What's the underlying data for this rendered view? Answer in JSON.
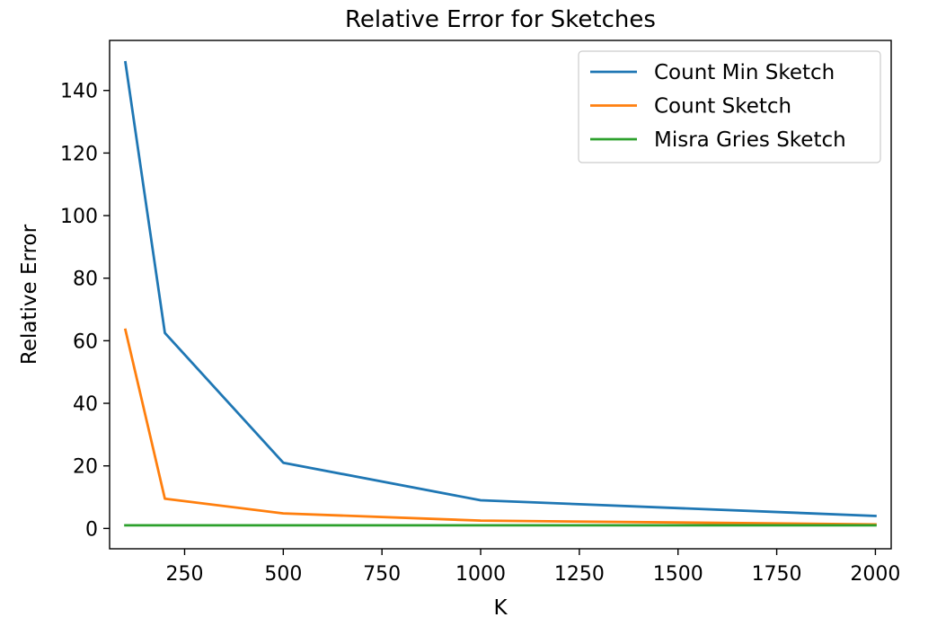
{
  "chart_data": {
    "type": "line",
    "title": "Relative Error for Sketches",
    "xlabel": "K",
    "ylabel": "Relative Error",
    "xlim": [
      60,
      2040
    ],
    "ylim": [
      -6.5,
      156
    ],
    "xticks": [
      250,
      500,
      750,
      1000,
      1250,
      1500,
      1750,
      2000
    ],
    "yticks": [
      0,
      20,
      40,
      60,
      80,
      100,
      120,
      140
    ],
    "grid": false,
    "legend_position": "top-right",
    "series": [
      {
        "name": "Count Min Sketch",
        "color": "#1f77b4",
        "x": [
          100,
          200,
          500,
          1000,
          2000
        ],
        "y": [
          149,
          62.5,
          21,
          9,
          4
        ]
      },
      {
        "name": "Count Sketch",
        "color": "#ff7f0e",
        "x": [
          100,
          200,
          500,
          1000,
          2000
        ],
        "y": [
          63.5,
          9.5,
          4.8,
          2.5,
          1.3
        ]
      },
      {
        "name": "Misra Gries Sketch",
        "color": "#2ca02c",
        "x": [
          100,
          200,
          500,
          1000,
          2000
        ],
        "y": [
          1,
          1,
          1,
          1,
          1
        ]
      }
    ]
  }
}
